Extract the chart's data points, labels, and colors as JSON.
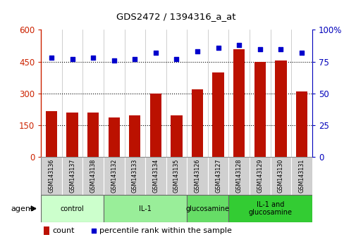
{
  "title": "GDS2472 / 1394316_a_at",
  "samples": [
    "GSM143136",
    "GSM143137",
    "GSM143138",
    "GSM143132",
    "GSM143133",
    "GSM143134",
    "GSM143135",
    "GSM143126",
    "GSM143127",
    "GSM143128",
    "GSM143129",
    "GSM143130",
    "GSM143131"
  ],
  "counts": [
    215,
    210,
    210,
    185,
    195,
    300,
    195,
    320,
    400,
    510,
    450,
    455,
    310
  ],
  "percentiles": [
    78,
    77,
    78,
    76,
    77,
    82,
    77,
    83,
    86,
    88,
    85,
    85,
    82
  ],
  "groups": [
    {
      "label": "control",
      "start": 0,
      "end": 3,
      "color": "#ccffcc"
    },
    {
      "label": "IL-1",
      "start": 3,
      "end": 7,
      "color": "#99ee99"
    },
    {
      "label": "glucosamine",
      "start": 7,
      "end": 9,
      "color": "#66dd66"
    },
    {
      "label": "IL-1 and\nglucosamine",
      "start": 9,
      "end": 13,
      "color": "#33cc33"
    }
  ],
  "bar_color": "#bb1100",
  "dot_color": "#0000cc",
  "ylim_left": [
    0,
    600
  ],
  "yticks_left": [
    0,
    150,
    300,
    450,
    600
  ],
  "ylim_right": [
    0,
    100
  ],
  "yticks_right": [
    0,
    25,
    50,
    75,
    100
  ],
  "grid_dotted_values": [
    150,
    300,
    450
  ],
  "sample_bg_color": "#d0d0d0",
  "sample_border_color": "#ffffff",
  "group_border_color": "#666666",
  "left_tick_color": "#cc2200",
  "right_tick_color": "#0000bb",
  "agent_label": "agent",
  "legend_count_label": "count",
  "legend_pct_label": "percentile rank within the sample"
}
